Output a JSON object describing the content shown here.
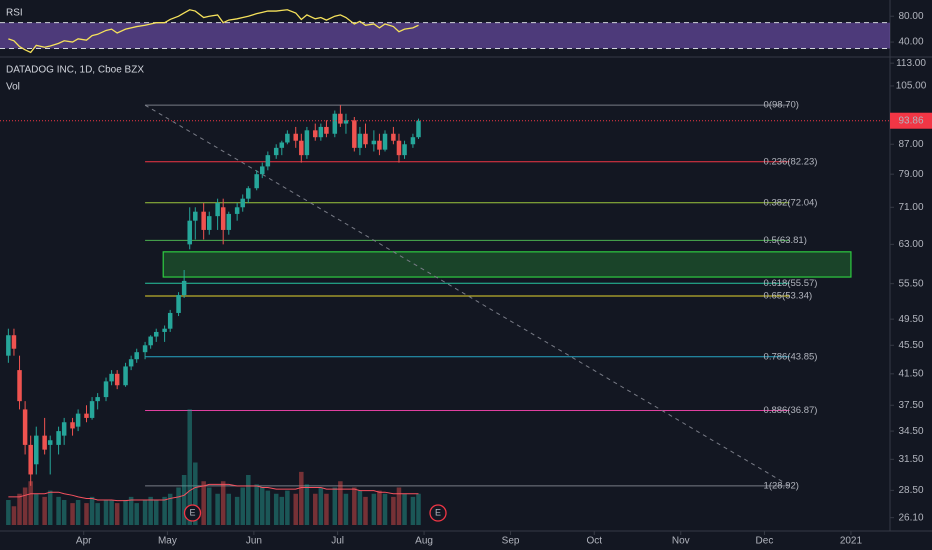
{
  "chart_data": {
    "type": "candlestick",
    "title": "DATADOG INC, 1D, Cboe BZX",
    "volume_label": "Vol",
    "up_color": "#26a69a",
    "down_color": "#ef5350",
    "x": [
      64,
      66,
      68,
      70,
      72,
      74,
      77,
      79,
      82,
      84,
      87,
      89,
      92,
      94,
      96,
      99,
      101,
      103,
      106,
      108,
      110,
      113,
      115,
      117,
      120,
      122,
      125,
      127,
      129,
      131,
      134,
      136,
      139,
      141,
      143,
      146,
      148,
      150,
      153,
      155,
      157,
      160,
      162,
      164,
      167,
      169,
      171,
      174,
      176,
      178,
      181,
      183,
      185,
      188,
      190,
      192,
      195,
      197,
      199,
      202,
      204,
      206,
      209,
      211
    ],
    "open": [
      44,
      47,
      42,
      37,
      33,
      31,
      34,
      33,
      33,
      34,
      35.5,
      35,
      36.5,
      36,
      38,
      38.5,
      40.5,
      41.5,
      40,
      42.5,
      43.5,
      44.5,
      45.5,
      46.8,
      47.5,
      48,
      50.5,
      53.5,
      63,
      68,
      70,
      66,
      69,
      71,
      66,
      69.5,
      71,
      73,
      75.5,
      79,
      81,
      84,
      86,
      87.5,
      90,
      88,
      84,
      91,
      89,
      92,
      90,
      96,
      93,
      94,
      86,
      90,
      87,
      88,
      85.5,
      90,
      88,
      84,
      87,
      89
    ],
    "high": [
      48,
      48,
      44,
      38,
      34,
      35,
      36,
      34,
      35,
      36,
      36,
      37,
      37.5,
      38.5,
      39,
      41,
      42,
      42,
      43,
      44,
      45,
      46,
      47,
      48,
      48.5,
      51,
      54,
      58,
      71,
      71,
      72,
      70,
      73,
      73,
      70,
      72,
      74,
      76,
      80,
      82,
      85,
      87,
      88,
      91,
      92,
      90,
      92,
      93,
      93,
      94,
      97,
      98.7,
      96,
      95,
      92,
      93,
      91,
      90,
      91,
      92,
      90,
      88,
      90,
      94.5
    ],
    "low": [
      43,
      44,
      37,
      32,
      28.92,
      30,
      32,
      30,
      32,
      33,
      34,
      34.5,
      35.5,
      35.8,
      37,
      38,
      40,
      39.5,
      39.8,
      42,
      43,
      43.5,
      45,
      46,
      46,
      47.5,
      50,
      53,
      62,
      64,
      64,
      65,
      66,
      63,
      65,
      68,
      70,
      72,
      75,
      78,
      80,
      83,
      84,
      87,
      86,
      82,
      83,
      88,
      88,
      89,
      89,
      92,
      90,
      85,
      84,
      86,
      85,
      84,
      85,
      87,
      82,
      83,
      86,
      88.5
    ],
    "close": [
      47,
      45,
      38,
      33,
      30,
      34,
      32.5,
      33.5,
      34.5,
      35.5,
      34.8,
      36.5,
      36,
      38,
      38.5,
      40.5,
      41.5,
      40,
      42.5,
      43.5,
      44.5,
      45.5,
      46.8,
      47.5,
      48,
      50.5,
      53.5,
      56,
      68,
      70,
      66,
      69,
      72,
      66,
      69.5,
      71,
      73,
      75.5,
      79,
      81,
      84,
      86,
      87.5,
      90,
      88,
      84,
      91,
      89,
      92,
      90,
      96,
      93,
      94,
      86,
      90,
      87,
      88,
      85.5,
      90,
      88,
      84,
      87,
      89,
      93.86
    ],
    "volume": [
      8,
      6,
      10,
      12,
      14,
      10,
      9,
      11,
      9,
      8,
      7,
      8,
      7,
      9,
      7,
      8,
      8,
      7,
      8,
      9,
      7,
      8,
      9,
      8,
      9,
      10,
      12,
      16,
      37,
      20,
      14,
      12,
      10,
      14,
      10,
      9,
      12,
      16,
      13,
      12,
      11,
      10,
      9,
      11,
      10,
      17,
      13,
      10,
      12,
      10,
      12,
      14,
      10,
      12,
      11,
      9,
      10,
      11,
      10,
      9,
      12,
      10,
      9,
      10
    ],
    "volume_ma": [
      9,
      9,
      9,
      9.5,
      10,
      10,
      10,
      10.5,
      10.5,
      10,
      9.5,
      9,
      8.5,
      8.5,
      8,
      8,
      8,
      7.8,
      7.8,
      8,
      8,
      8,
      8,
      8,
      8,
      8.5,
      9,
      9.5,
      11,
      12,
      12.5,
      13,
      13,
      13,
      13,
      12.5,
      12.5,
      12.5,
      12.5,
      12,
      12,
      11.5,
      11.5,
      11.5,
      11.5,
      12,
      12,
      12,
      12,
      11.5,
      11.5,
      11.5,
      11.5,
      11.5,
      11,
      11,
      11,
      10.5,
      10.5,
      10,
      10,
      10,
      10,
      10
    ],
    "volume_ma_color": "#f7525f",
    "volume_ylim": [
      0,
      40
    ],
    "xlim": [
      61,
      380
    ],
    "xticks": [
      {
        "value": 91,
        "label": "Apr"
      },
      {
        "value": 121,
        "label": "May"
      },
      {
        "value": 152,
        "label": "Jun"
      },
      {
        "value": 182,
        "label": "Jul"
      },
      {
        "value": 213,
        "label": "Aug"
      },
      {
        "value": 244,
        "label": "Sep"
      },
      {
        "value": 274,
        "label": "Oct"
      },
      {
        "value": 305,
        "label": "Nov"
      },
      {
        "value": 335,
        "label": "Dec"
      },
      {
        "value": 366,
        "label": "2021"
      }
    ],
    "ylim": [
      25.0,
      114.9
    ],
    "log_scale": true,
    "yticks": [
      {
        "value": 113,
        "label": "113.00"
      },
      {
        "value": 105,
        "label": "105.00"
      },
      {
        "value": 87,
        "label": "87.00"
      },
      {
        "value": 79,
        "label": "79.00"
      },
      {
        "value": 71,
        "label": "71.00"
      },
      {
        "value": 63,
        "label": "63.00"
      },
      {
        "value": 55.5,
        "label": "55.50"
      },
      {
        "value": 49.5,
        "label": "49.50"
      },
      {
        "value": 45.5,
        "label": "45.50"
      },
      {
        "value": 41.5,
        "label": "41.50"
      },
      {
        "value": 37.5,
        "label": "37.50"
      },
      {
        "value": 34.5,
        "label": "34.50"
      },
      {
        "value": 31.5,
        "label": "31.50"
      },
      {
        "value": 28.5,
        "label": "28.50"
      },
      {
        "value": 26.1,
        "label": "26.10"
      }
    ],
    "last_price": 93.86,
    "last_price_color": "#f23645",
    "fib_x": [
      113,
      344
    ],
    "fib_levels": [
      {
        "label": "0(98.70)",
        "value": 98.7,
        "color": "#787b86"
      },
      {
        "label": "0.236(82.23)",
        "value": 82.23,
        "color": "#f23645"
      },
      {
        "label": "0.382(72.04)",
        "value": 72.04,
        "color": "#9bc53d"
      },
      {
        "label": "0.5(63.81)",
        "value": 63.81,
        "color": "#4caf50"
      },
      {
        "label": "0.618(55.57)",
        "value": 55.57,
        "color": "#26c6a0"
      },
      {
        "label": "0.65(53.34)",
        "value": 53.34,
        "color": "#e6d62e"
      },
      {
        "label": "0.786(43.85)",
        "value": 43.85,
        "color": "#26a6c4"
      },
      {
        "label": "0.886(36.87)",
        "value": 36.87,
        "color": "#e040a0"
      },
      {
        "label": "1(28.92)",
        "value": 28.92,
        "color": "#787b86"
      }
    ],
    "trendline": {
      "x": [
        113,
        344
      ],
      "y": [
        98.7,
        28.92
      ],
      "color": "#787b86"
    },
    "zone": {
      "x": [
        119.5,
        366
      ],
      "y": [
        56.7,
        61.5
      ],
      "color": "#2ecc40"
    },
    "events": [
      {
        "x": 130,
        "label": "E"
      },
      {
        "x": 218,
        "label": "E"
      }
    ],
    "event_color": "#f23645",
    "rsi": {
      "title": "RSI",
      "color": "#f5e15b",
      "band_color": "#7e57c2",
      "bands": [
        30,
        70
      ],
      "ylim": [
        20,
        102
      ],
      "yticks": [
        {
          "value": 80,
          "label": "80.00"
        },
        {
          "value": 40,
          "label": "40.00"
        }
      ],
      "values": [
        45,
        42,
        33,
        28,
        24,
        35,
        32,
        34,
        38,
        42,
        40,
        45,
        43,
        50,
        52,
        58,
        60,
        54,
        60,
        62,
        64,
        66,
        68,
        70,
        70,
        75,
        80,
        85,
        90,
        88,
        78,
        80,
        82,
        70,
        74,
        76,
        78,
        80,
        84,
        86,
        88,
        88,
        89,
        90,
        85,
        75,
        82,
        76,
        78,
        74,
        80,
        82,
        78,
        68,
        72,
        66,
        68,
        62,
        68,
        64,
        56,
        60,
        62,
        66
      ]
    }
  }
}
